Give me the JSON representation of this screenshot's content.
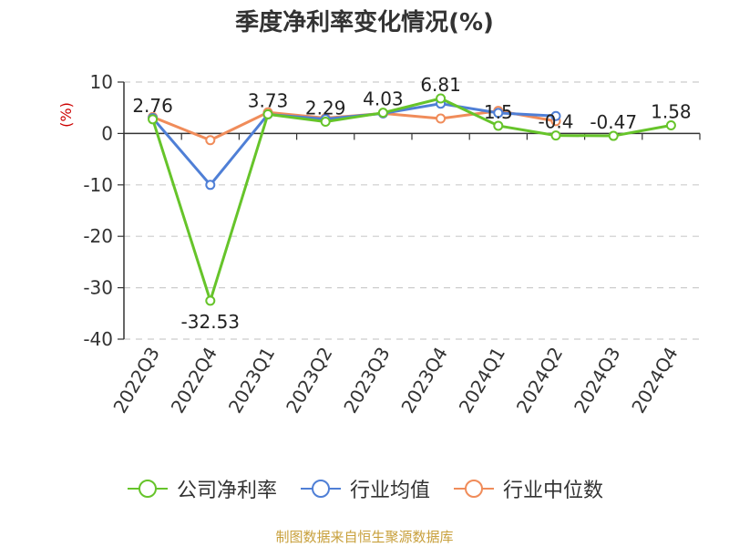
{
  "chart_data": {
    "type": "line",
    "title": "季度净利率变化情况(%)",
    "ylabel": "(%)",
    "xlabel": "",
    "categories": [
      "2022Q3",
      "2022Q4",
      "2023Q1",
      "2023Q2",
      "2023Q3",
      "2023Q4",
      "2024Q1",
      "2024Q2",
      "2024Q3",
      "2024Q4"
    ],
    "ylim": [
      -40,
      10
    ],
    "yticks": [
      10,
      0,
      -10,
      -20,
      -30,
      -40
    ],
    "grid": true,
    "legend_position": "bottom",
    "series": [
      {
        "name": "公司净利率",
        "color": "#66c42a",
        "values": [
          2.76,
          -32.53,
          3.73,
          2.29,
          4.03,
          6.81,
          1.5,
          -0.4,
          -0.47,
          1.58
        ],
        "labels": [
          "2.76",
          "-32.53",
          "3.73",
          "2.29",
          "4.03",
          "6.81",
          "1.5",
          "-0.4",
          "-0.47",
          "1.58"
        ]
      },
      {
        "name": "行业均值",
        "color": "#4f7fd6",
        "values": [
          3.0,
          -10.0,
          3.7,
          2.8,
          3.9,
          5.8,
          4.0,
          3.4,
          null,
          null
        ]
      },
      {
        "name": "行业中位数",
        "color": "#f08c5a",
        "values": [
          3.2,
          -1.3,
          4.1,
          3.0,
          3.9,
          2.9,
          4.4,
          2.4,
          null,
          null
        ]
      }
    ]
  },
  "footer": "制图数据来自恒生聚源数据库"
}
